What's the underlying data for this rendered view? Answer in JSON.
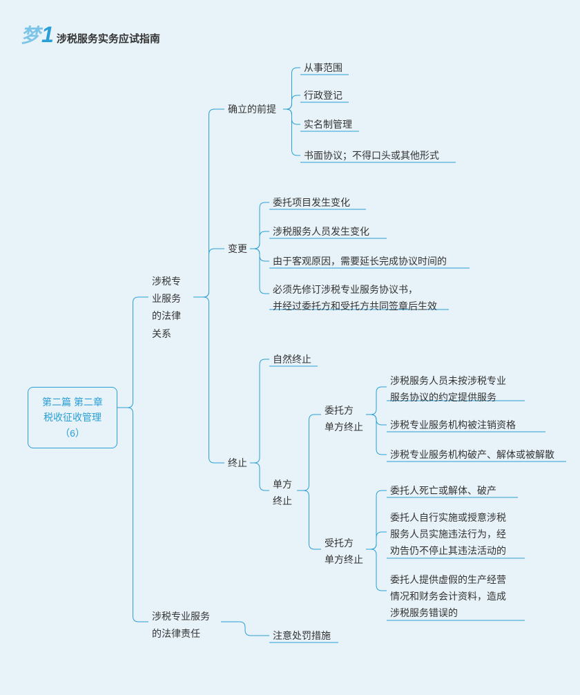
{
  "header": {
    "logo_text": "梦",
    "logo_num": "1",
    "title": "涉税服务实务应试指南"
  },
  "colors": {
    "line": "#2a9fd6",
    "bg": "#e8f3f9",
    "text": "#333"
  },
  "root": {
    "line1": "第二篇 第二章",
    "line2": "税收征收管理（6）"
  },
  "l1": {
    "a": "涉税专\n业服务\n的法律\n关系",
    "b": "涉税专业服务\n的法律责任"
  },
  "l2": {
    "a": "确立的前提",
    "b": "变更",
    "c": "终止",
    "d": "注意处罚措施"
  },
  "leaves": {
    "a1": "从事范围",
    "a2": "行政登记",
    "a3": "实名制管理",
    "a4": "书面协议；不得口头或其他形式",
    "b1": "委托项目发生变化",
    "b2": "涉税服务人员发生变化",
    "b3": "由于客观原因，需要延长完成协议时间的",
    "b4": "必须先修订涉税专业服务协议书，\n并经过委托方和受托方共同签章后生效",
    "c1": "自然终止",
    "c2": "单方\n终止"
  },
  "l3": {
    "d1": "委托方\n单方终止",
    "d2": "受托方\n单方终止"
  },
  "leaves2": {
    "d1a": "涉税服务人员未按涉税专业\n服务协议的约定提供服务",
    "d1b": "涉税专业服务机构被注销资格",
    "d1c": "涉税专业服务机构破产、解体或被解散",
    "d2a": "委托人死亡或解体、破产",
    "d2b": "委托人自行实施或授意涉税\n服务人员实施违法行为，经\n劝告仍不停止其违法活动的",
    "d2c": "委托人提供虚假的生产经营\n情况和财务会计资料，造成\n涉税服务错误的"
  }
}
